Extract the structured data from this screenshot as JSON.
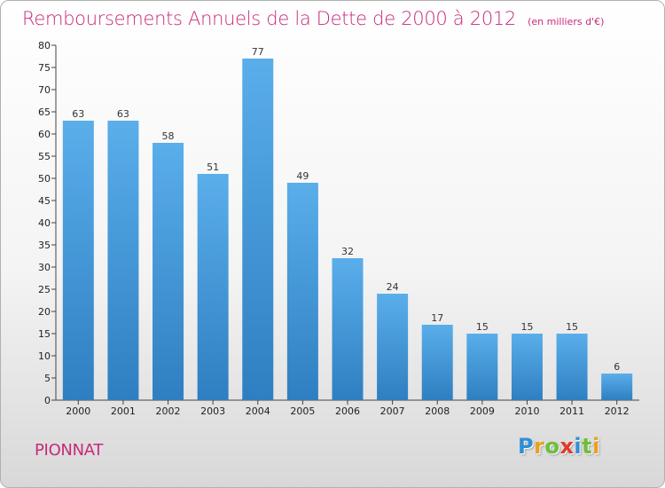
{
  "chart_data": {
    "type": "bar",
    "title": "Remboursements Annuels de la Dette de 2000 à 2012",
    "subtitle": "(en milliers d'€)",
    "categories": [
      "2000",
      "2001",
      "2002",
      "2003",
      "2004",
      "2005",
      "2006",
      "2007",
      "2008",
      "2009",
      "2010",
      "2011",
      "2012"
    ],
    "values": [
      63,
      63,
      58,
      51,
      77,
      49,
      32,
      24,
      17,
      15,
      15,
      15,
      6
    ],
    "xlabel": "",
    "ylabel": "",
    "ylim": [
      0,
      80
    ],
    "yticks": [
      0,
      5,
      10,
      15,
      20,
      25,
      30,
      35,
      40,
      45,
      50,
      55,
      60,
      65,
      70,
      75,
      80
    ],
    "grid": false,
    "bar_color_top": "#5aaeea",
    "bar_color_bottom": "#2e7fc1"
  },
  "footer": {
    "commune": "PIONNAT",
    "logo_letters": [
      {
        "ch": "P",
        "color": "#2f8fd4"
      },
      {
        "ch": "r",
        "color": "#e8a020"
      },
      {
        "ch": "o",
        "color": "#6cbf3a"
      },
      {
        "ch": "x",
        "color": "#e03a2a"
      },
      {
        "ch": "i",
        "color": "#2f8fd4"
      },
      {
        "ch": "t",
        "color": "#6cbf3a"
      },
      {
        "ch": "i",
        "color": "#e8a020"
      }
    ],
    "accent_color": "#c72a7a"
  }
}
